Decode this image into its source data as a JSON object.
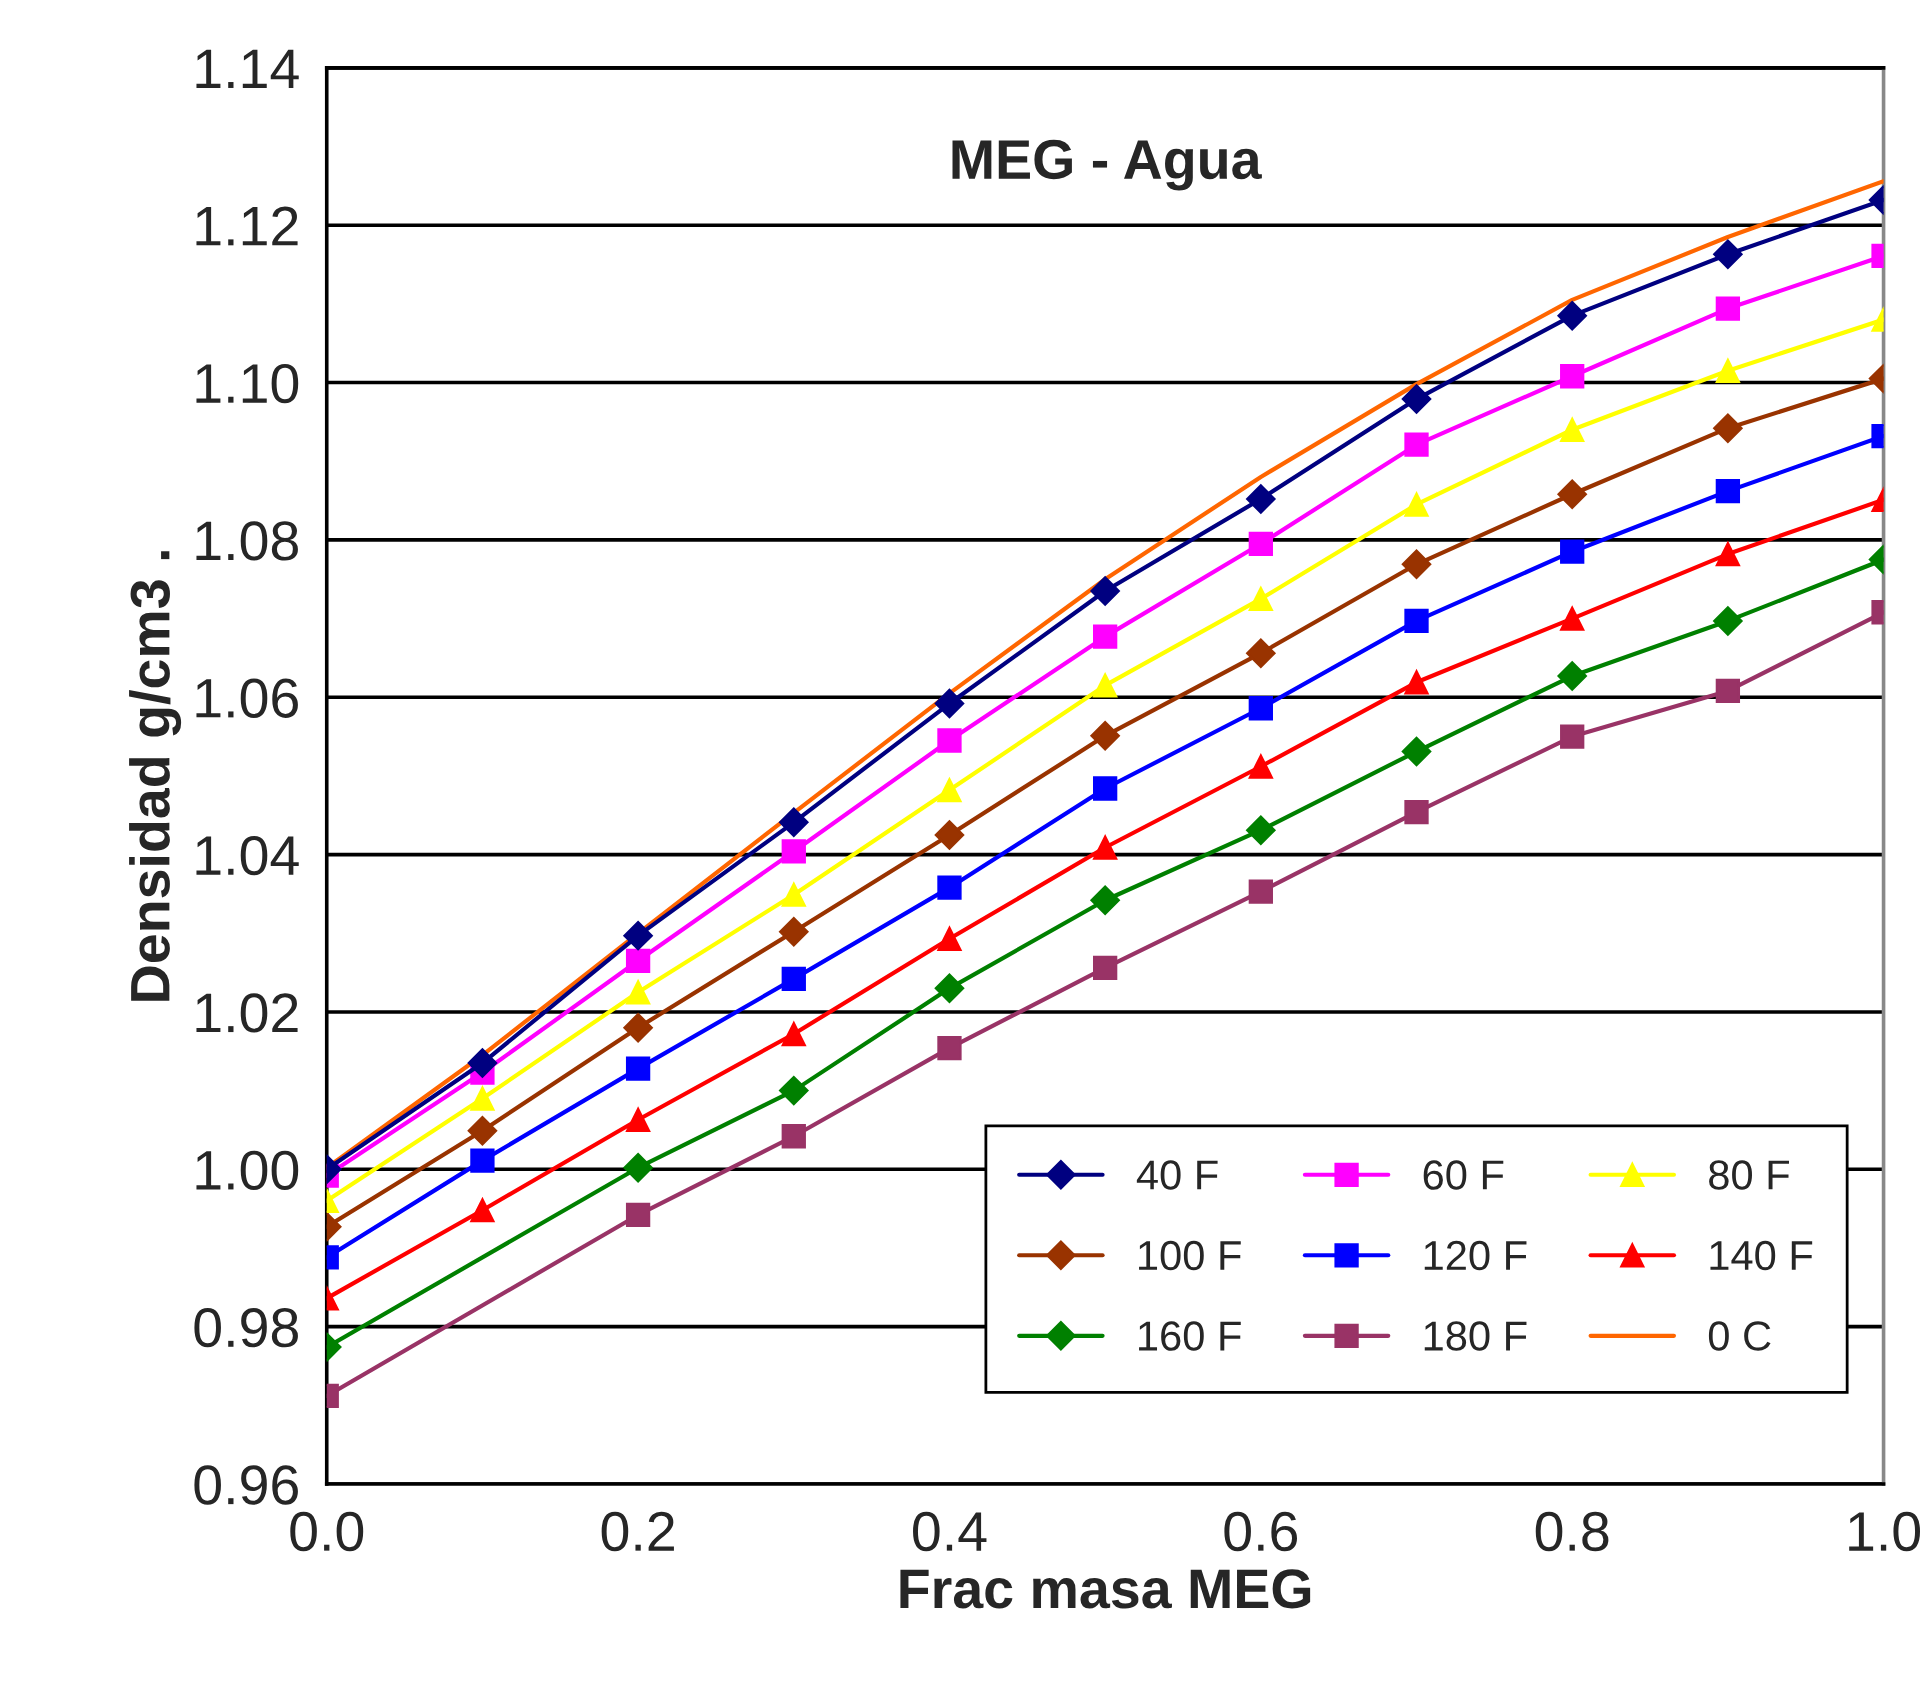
{
  "chart_data": {
    "type": "line",
    "title": "MEG - Agua",
    "xlabel": "Frac masa MEG",
    "ylabel": "Densidad g/cm3 .",
    "x": [
      0.0,
      0.1,
      0.2,
      0.3,
      0.4,
      0.5,
      0.6,
      0.7,
      0.8,
      0.9,
      1.0
    ],
    "series": [
      {
        "name": "40 F",
        "color": "#000080",
        "marker": "diamond",
        "values": [
          1.0,
          1.0135,
          1.0297,
          1.0441,
          1.0592,
          1.0735,
          1.0852,
          1.0979,
          1.1085,
          1.1163,
          1.1232
        ]
      },
      {
        "name": "60 F",
        "color": "#ff00ff",
        "marker": "square",
        "values": [
          0.9992,
          1.0123,
          1.0265,
          1.0404,
          1.0545,
          1.0677,
          1.0795,
          1.0921,
          1.1008,
          1.1094,
          1.1161
        ]
      },
      {
        "name": "80 F",
        "color": "#ffff00",
        "marker": "triangle",
        "values": [
          0.996,
          1.009,
          1.0225,
          1.0349,
          1.0482,
          1.0615,
          1.0725,
          1.0845,
          1.094,
          1.1015,
          1.108
        ]
      },
      {
        "name": "100 F",
        "color": "#993300",
        "marker": "diamond",
        "values": [
          0.9927,
          1.0049,
          1.018,
          1.0302,
          1.0425,
          1.0551,
          1.0656,
          1.0769,
          1.0858,
          1.0942,
          1.1005
        ]
      },
      {
        "name": "120 F",
        "color": "#0000ff",
        "marker": "square",
        "values": [
          0.9888,
          1.0011,
          1.0128,
          1.0242,
          1.0358,
          1.0484,
          1.0586,
          1.0697,
          1.0785,
          1.0862,
          1.0932
        ]
      },
      {
        "name": "140 F",
        "color": "#ff0000",
        "marker": "triangle",
        "values": [
          0.9836,
          0.9948,
          1.0063,
          1.0172,
          1.0293,
          1.0409,
          1.0512,
          1.0619,
          1.07,
          1.0782,
          1.0851
        ]
      },
      {
        "name": "160 F",
        "color": "#008000",
        "marker": "diamond",
        "x": [
          0.0,
          0.2,
          0.3,
          0.4,
          0.5,
          0.6,
          0.7,
          0.8,
          0.9,
          1.0
        ],
        "values": [
          0.9774,
          1.0002,
          1.01,
          1.023,
          1.0342,
          1.0431,
          1.0531,
          1.0627,
          1.0697,
          1.0775
        ]
      },
      {
        "name": "180 F",
        "color": "#993366",
        "marker": "square",
        "x": [
          0.0,
          0.2,
          0.3,
          0.4,
          0.5,
          0.6,
          0.7,
          0.8,
          0.9,
          1.0
        ],
        "values": [
          0.9712,
          0.9942,
          1.0042,
          1.0154,
          1.0256,
          1.0353,
          1.0454,
          1.055,
          1.0608,
          1.0708
        ]
      },
      {
        "name": "0 C",
        "color": "#ff6600",
        "marker": "none",
        "values": [
          1.0002,
          1.0145,
          1.03,
          1.0453,
          1.0605,
          1.075,
          1.088,
          1.0998,
          1.1105,
          1.1185,
          1.1256
        ]
      }
    ],
    "xlim": [
      0.0,
      1.0
    ],
    "xticks": [
      {
        "value": 0.0,
        "label": "0.0"
      },
      0.2,
      0.4,
      0.6,
      0.8,
      {
        "value": 1.0,
        "label": "1.0"
      }
    ],
    "ylim": [
      0.96,
      1.14
    ],
    "yticks": [
      0.96,
      0.98,
      {
        "value": 1.0,
        "label": "1.00"
      },
      1.02,
      1.04,
      1.06,
      1.08,
      {
        "value": 1.1,
        "label": "1.10"
      },
      1.12,
      1.14
    ],
    "grid": "y",
    "legend": "bottom right",
    "line_style": "solid"
  }
}
